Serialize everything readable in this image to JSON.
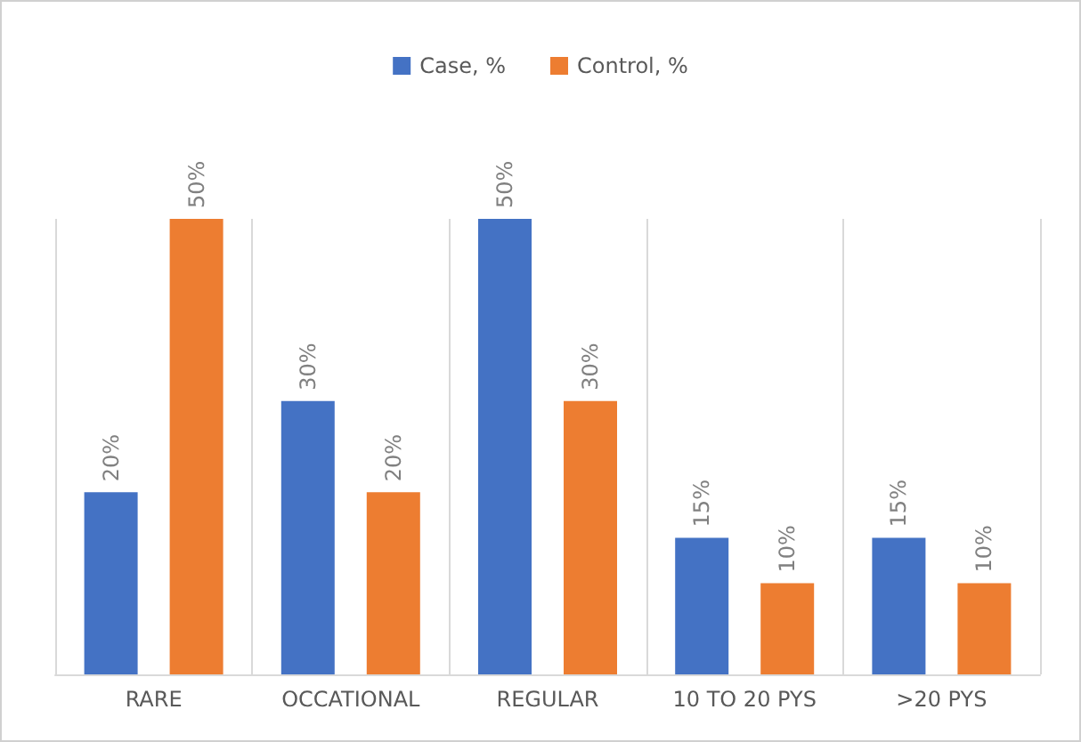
{
  "chart_data": {
    "type": "bar",
    "categories": [
      "RARE",
      "OCCATIONAL",
      "REGULAR",
      "10 TO 20 PYS",
      ">20 PYS"
    ],
    "series": [
      {
        "name": "Case, %",
        "color": "#4472c4",
        "values": [
          20,
          30,
          50,
          15,
          15
        ],
        "value_labels": [
          "20%",
          "30%",
          "50%",
          "15%",
          "15%"
        ]
      },
      {
        "name": "Control, %",
        "color": "#ed7d31",
        "values": [
          50,
          20,
          30,
          10,
          10
        ],
        "value_labels": [
          "50%",
          "20%",
          "30%",
          "10%",
          "10%"
        ]
      }
    ],
    "legend": "top",
    "grid": "x",
    "tick_labels": "x"
  }
}
